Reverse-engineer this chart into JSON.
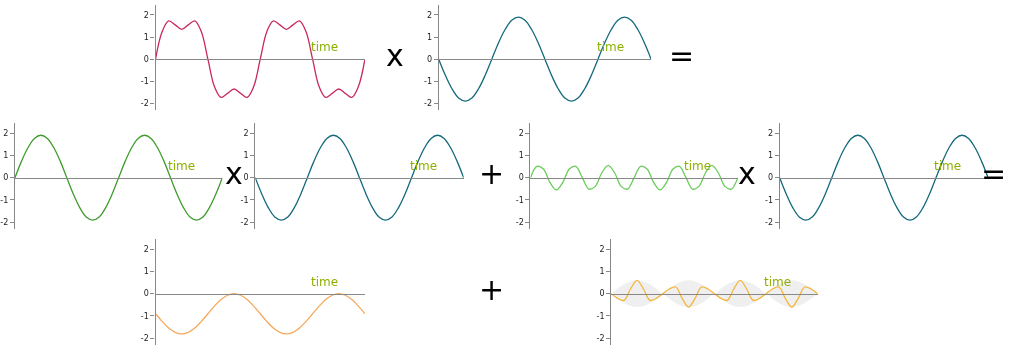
{
  "chart_data": [
    {
      "type": "line",
      "categories": [
        null,
        null,
        null,
        null,
        null,
        null,
        null,
        null,
        null,
        null,
        null,
        null,
        null,
        null,
        null,
        null,
        null,
        null,
        null,
        null,
        null,
        null,
        null,
        null,
        null,
        null,
        null,
        null,
        null,
        null,
        null,
        null,
        null
      ],
      "xlabel": "time",
      "annotations": [
        "x"
      ],
      "ylim": [
        -2.3,
        2.45
      ],
      "yticks": [
        -2,
        -1,
        0,
        1,
        2
      ],
      "tick_labels": "y",
      "series": [
        {
          "color": "#c8285a",
          "values": [
            0,
            1.24,
            1.73,
            1.55,
            1.35,
            1.55,
            1.73,
            1.24,
            0,
            -1.24,
            -1.73,
            -1.55,
            -1.35,
            -1.55,
            -1.73,
            -1.24,
            0,
            1.24,
            1.73,
            1.55,
            1.35,
            1.55,
            1.73,
            1.24,
            0,
            -1.24,
            -1.73,
            -1.55,
            -1.35,
            -1.55,
            -1.73,
            -1.24,
            0
          ]
        }
      ]
    },
    {
      "type": "line",
      "categories": [
        null,
        null,
        null,
        null,
        null,
        null,
        null,
        null,
        null,
        null,
        null,
        null,
        null,
        null,
        null,
        null,
        null,
        null,
        null,
        null,
        null,
        null,
        null,
        null,
        null,
        null,
        null,
        null,
        null,
        null,
        null,
        null,
        null
      ],
      "xlabel": "time",
      "annotations": [
        "="
      ],
      "ylim": [
        -2.3,
        2.45
      ],
      "yticks": [
        -2,
        -1,
        0,
        1,
        2
      ],
      "tick_labels": "y",
      "series": [
        {
          "color": "#14697c",
          "values": [
            0,
            -0.73,
            -1.34,
            -1.76,
            -1.9,
            -1.76,
            -1.34,
            -0.73,
            0,
            0.73,
            1.34,
            1.76,
            1.9,
            1.76,
            1.34,
            0.73,
            0,
            -0.73,
            -1.34,
            -1.76,
            -1.9,
            -1.76,
            -1.34,
            -0.73,
            0,
            0.73,
            1.34,
            1.76,
            1.9,
            1.76,
            1.34,
            0.73,
            0
          ]
        }
      ]
    },
    {
      "type": "line",
      "categories": [
        null,
        null,
        null,
        null,
        null,
        null,
        null,
        null,
        null,
        null,
        null,
        null,
        null,
        null,
        null,
        null,
        null,
        null,
        null,
        null,
        null,
        null,
        null,
        null,
        null,
        null,
        null,
        null,
        null,
        null,
        null,
        null,
        null
      ],
      "xlabel": "time",
      "annotations": [
        "x"
      ],
      "ylim": [
        -2.3,
        2.45
      ],
      "yticks": [
        -2,
        -1,
        0,
        1,
        2
      ],
      "tick_labels": "y",
      "series": [
        {
          "color": "#3f9c2c",
          "values": [
            0,
            0.73,
            1.34,
            1.76,
            1.9,
            1.76,
            1.34,
            0.73,
            0,
            -0.73,
            -1.34,
            -1.76,
            -1.9,
            -1.76,
            -1.34,
            -0.73,
            0,
            0.73,
            1.34,
            1.76,
            1.9,
            1.76,
            1.34,
            0.73,
            0,
            -0.73,
            -1.34,
            -1.76,
            -1.9,
            -1.76,
            -1.34,
            -0.73,
            0
          ]
        }
      ]
    },
    {
      "type": "line",
      "categories": [
        null,
        null,
        null,
        null,
        null,
        null,
        null,
        null,
        null,
        null,
        null,
        null,
        null,
        null,
        null,
        null,
        null,
        null,
        null,
        null,
        null,
        null,
        null,
        null,
        null,
        null,
        null,
        null,
        null,
        null,
        null,
        null,
        null
      ],
      "xlabel": "time",
      "annotations": [
        "+"
      ],
      "ylim": [
        -2.3,
        2.45
      ],
      "yticks": [
        -2,
        -1,
        0,
        1,
        2
      ],
      "tick_labels": "y",
      "series": [
        {
          "color": "#14697c",
          "values": [
            0,
            -0.73,
            -1.34,
            -1.76,
            -1.9,
            -1.76,
            -1.34,
            -0.73,
            0,
            0.73,
            1.34,
            1.76,
            1.9,
            1.76,
            1.34,
            0.73,
            0,
            -0.73,
            -1.34,
            -1.76,
            -1.9,
            -1.76,
            -1.34,
            -0.73,
            0,
            0.73,
            1.34,
            1.76,
            1.9,
            1.76,
            1.34,
            0.73,
            0
          ]
        }
      ]
    },
    {
      "type": "line",
      "categories": [
        null,
        null,
        null,
        null,
        null,
        null,
        null,
        null,
        null,
        null,
        null,
        null,
        null,
        null,
        null,
        null,
        null,
        null,
        null,
        null,
        null,
        null,
        null,
        null,
        null,
        null,
        null,
        null,
        null,
        null,
        null,
        null,
        null
      ],
      "xlabel": "time",
      "annotations": [
        "x"
      ],
      "ylim": [
        -2.3,
        2.45
      ],
      "yticks": [
        -2,
        -1,
        0,
        1,
        2
      ],
      "tick_labels": "y",
      "series": [
        {
          "color": "#6acc5a",
          "values": [
            0,
            0.51,
            0.39,
            -0.21,
            -0.55,
            -0.21,
            0.39,
            0.51,
            0,
            -0.51,
            -0.39,
            0.21,
            0.55,
            0.21,
            -0.39,
            -0.51,
            0,
            0.51,
            0.39,
            -0.21,
            -0.55,
            -0.21,
            0.39,
            0.51,
            0,
            -0.51,
            -0.39,
            0.21,
            0.55,
            0.21,
            -0.39,
            -0.51,
            0
          ]
        }
      ]
    },
    {
      "type": "line",
      "categories": [
        null,
        null,
        null,
        null,
        null,
        null,
        null,
        null,
        null,
        null,
        null,
        null,
        null,
        null,
        null,
        null,
        null,
        null,
        null,
        null,
        null,
        null,
        null,
        null,
        null,
        null,
        null,
        null,
        null,
        null,
        null,
        null,
        null
      ],
      "xlabel": "time",
      "annotations": [
        "="
      ],
      "ylim": [
        -2.3,
        2.45
      ],
      "yticks": [
        -2,
        -1,
        0,
        1,
        2
      ],
      "tick_labels": "y",
      "series": [
        {
          "color": "#14697c",
          "values": [
            0,
            -0.73,
            -1.34,
            -1.76,
            -1.9,
            -1.76,
            -1.34,
            -0.73,
            0,
            0.73,
            1.34,
            1.76,
            1.9,
            1.76,
            1.34,
            0.73,
            0,
            -0.73,
            -1.34,
            -1.76,
            -1.9,
            -1.76,
            -1.34,
            -0.73,
            0,
            0.73,
            1.34,
            1.76,
            1.9,
            1.76,
            1.34,
            0.73,
            0
          ]
        }
      ]
    },
    {
      "type": "line",
      "categories": [
        null,
        null,
        null,
        null,
        null,
        null,
        null,
        null,
        null,
        null,
        null,
        null,
        null,
        null,
        null,
        null,
        null,
        null,
        null,
        null,
        null,
        null,
        null,
        null,
        null,
        null,
        null,
        null,
        null,
        null,
        null,
        null,
        null
      ],
      "xlabel": "time",
      "annotations": [
        "+"
      ],
      "ylim": [
        -2.3,
        2.45
      ],
      "yticks": [
        -2,
        -1,
        0,
        1,
        2
      ],
      "tick_labels": "y",
      "series": [
        {
          "color": "#f7a85c",
          "values": [
            -0.9,
            -1.24,
            -1.54,
            -1.73,
            -1.8,
            -1.73,
            -1.54,
            -1.24,
            -0.9,
            -0.56,
            -0.26,
            -0.07,
            0,
            -0.07,
            -0.26,
            -0.56,
            -0.9,
            -1.24,
            -1.54,
            -1.73,
            -1.8,
            -1.73,
            -1.54,
            -1.24,
            -0.9,
            -0.56,
            -0.26,
            -0.07,
            0,
            -0.07,
            -0.26,
            -0.56,
            -0.9
          ]
        }
      ]
    },
    {
      "type": "line",
      "categories": [
        null,
        null,
        null,
        null,
        null,
        null,
        null,
        null,
        null,
        null,
        null,
        null,
        null,
        null,
        null,
        null,
        null,
        null,
        null,
        null,
        null,
        null,
        null,
        null,
        null,
        null,
        null,
        null,
        null,
        null,
        null,
        null,
        null
      ],
      "xlabel": "time",
      "ylim": [
        -2.3,
        2.45
      ],
      "yticks": [
        -2,
        -1,
        0,
        1,
        2
      ],
      "tick_labels": "y",
      "series": [
        {
          "color": "#f5b53a",
          "values": [
            0,
            -0.21,
            -0.3,
            0.21,
            0.6,
            0.21,
            -0.3,
            -0.21,
            0,
            0.21,
            0.3,
            -0.21,
            -0.6,
            -0.21,
            0.3,
            0.21,
            0,
            -0.21,
            -0.3,
            0.21,
            0.6,
            0.21,
            -0.3,
            -0.21,
            0,
            0.21,
            0.3,
            -0.21,
            -0.6,
            -0.21,
            0.3,
            0.21,
            0
          ],
          "upper": [
            0,
            0.23,
            0.42,
            0.55,
            0.6,
            0.55,
            0.42,
            0.23,
            0,
            0.23,
            0.42,
            0.55,
            0.6,
            0.55,
            0.42,
            0.23,
            0,
            0.23,
            0.42,
            0.55,
            0.6,
            0.55,
            0.42,
            0.23,
            0,
            0.23,
            0.42,
            0.55,
            0.6,
            0.55,
            0.42,
            0.23,
            0
          ],
          "lower": [
            0,
            -0.23,
            -0.42,
            -0.55,
            -0.6,
            -0.55,
            -0.42,
            -0.23,
            0,
            -0.23,
            -0.42,
            -0.55,
            -0.6,
            -0.55,
            -0.42,
            -0.23,
            0,
            -0.23,
            -0.42,
            -0.55,
            -0.6,
            -0.55,
            -0.42,
            -0.23,
            0,
            -0.23,
            -0.42,
            -0.55,
            -0.6,
            -0.55,
            -0.42,
            -0.23,
            0
          ]
        }
      ]
    }
  ]
}
